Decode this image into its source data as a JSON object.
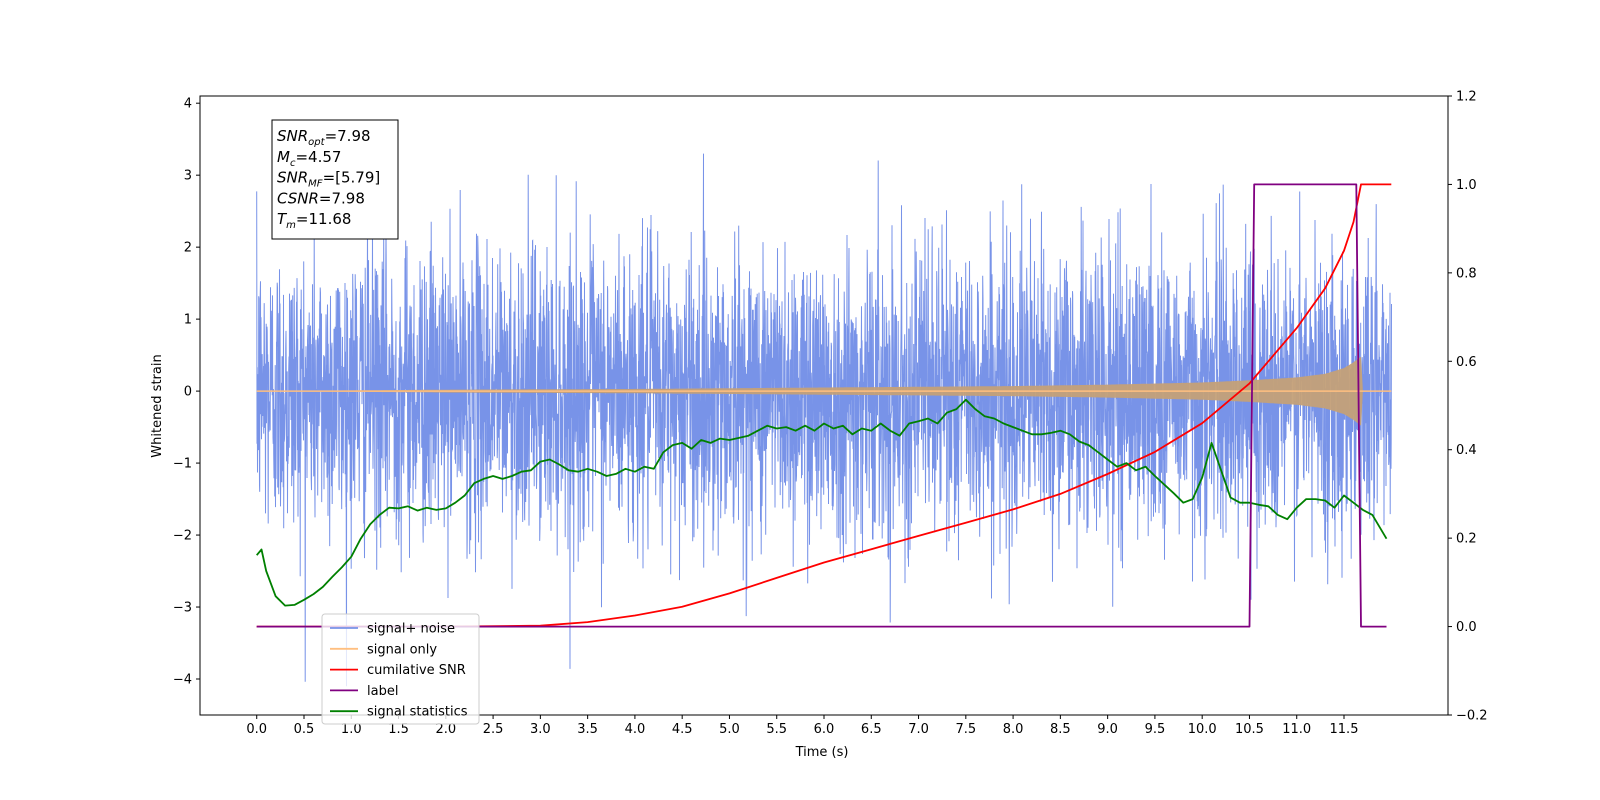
{
  "chart_data": {
    "type": "line",
    "title": "",
    "xlabel": "Time (s)",
    "ylabel": "Whitened strain",
    "xlim": [
      -0.6,
      12.6
    ],
    "ylim": [
      -4.5,
      4.1
    ],
    "y2lim": [
      -0.2,
      1.2
    ],
    "xticks": [
      "0.0",
      "0.5",
      "1.0",
      "1.5",
      "2.0",
      "2.5",
      "3.0",
      "3.5",
      "4.0",
      "4.5",
      "5.0",
      "5.5",
      "6.0",
      "6.5",
      "7.0",
      "7.5",
      "8.0",
      "8.5",
      "9.0",
      "9.5",
      "10.0",
      "10.5",
      "11.0",
      "11.5"
    ],
    "xtick_values": [
      0,
      0.5,
      1,
      1.5,
      2,
      2.5,
      3,
      3.5,
      4,
      4.5,
      5,
      5.5,
      6,
      6.5,
      7,
      7.5,
      8,
      8.5,
      9,
      9.5,
      10,
      10.5,
      11,
      11.5
    ],
    "yticks": [
      "4",
      "3",
      "2",
      "1",
      "0",
      "−1",
      "−2",
      "−3",
      "−4"
    ],
    "ytick_values": [
      4,
      3,
      2,
      1,
      0,
      -1,
      -2,
      -3,
      -4
    ],
    "y2ticks": [
      "1.2",
      "1.0",
      "0.8",
      "0.6",
      "0.4",
      "0.2",
      "0.0",
      "−0.2"
    ],
    "y2tick_values": [
      1.2,
      1.0,
      0.8,
      0.6,
      0.4,
      0.2,
      0.0,
      -0.2
    ],
    "annotations": [
      {
        "symbol": "SNR",
        "sub": "opt",
        "value": "=7.98"
      },
      {
        "symbol": "M",
        "sub": "c",
        "value": "=4.57"
      },
      {
        "symbol": "SNR",
        "sub": "MF",
        "value": "=[5.79]"
      },
      {
        "symbol": "CSNR",
        "sub": "",
        "value": "=7.98"
      },
      {
        "symbol": "T",
        "sub": "m",
        "value": "=11.68"
      }
    ],
    "legend": {
      "placement": "lower-left",
      "entries": [
        {
          "label": "signal+ noise",
          "color": "#7893e8"
        },
        {
          "label": "signal only",
          "color": "#ffbf80"
        },
        {
          "label": "cumilative SNR",
          "color": "#ff0000"
        },
        {
          "label": "label",
          "color": "#800080"
        },
        {
          "label": "signal statistics",
          "color": "#008000"
        }
      ]
    },
    "series": [
      {
        "name": "signal+ noise",
        "axis": "left",
        "color": "#7893e8",
        "kind": "noise",
        "x_range": [
          0.0,
          12.0
        ],
        "sigma": 1.0,
        "y_max": 3.3,
        "y_min": -4.1
      },
      {
        "name": "signal only",
        "axis": "left",
        "color": "#c4a078",
        "kind": "chirp",
        "x_range": [
          0.0,
          12.0
        ],
        "envelope_x": [
          0.0,
          2.0,
          4.0,
          6.0,
          8.0,
          9.0,
          10.0,
          10.5,
          11.0,
          11.3,
          11.5,
          11.6,
          11.68,
          11.7,
          12.0
        ],
        "envelope_y": [
          0.0,
          0.02,
          0.03,
          0.05,
          0.07,
          0.09,
          0.12,
          0.15,
          0.19,
          0.24,
          0.32,
          0.4,
          0.48,
          0.0,
          0.0
        ]
      },
      {
        "name": "cumilative SNR",
        "axis": "right",
        "color": "#ff0000",
        "x": [
          0.0,
          2.0,
          3.0,
          3.5,
          4.0,
          4.5,
          5.0,
          5.5,
          6.0,
          6.5,
          7.0,
          7.5,
          8.0,
          8.5,
          9.0,
          9.5,
          10.0,
          10.5,
          11.0,
          11.3,
          11.5,
          11.6,
          11.68,
          12.0
        ],
        "y": [
          0.0,
          0.0,
          0.002,
          0.01,
          0.025,
          0.045,
          0.075,
          0.11,
          0.145,
          0.175,
          0.205,
          0.235,
          0.265,
          0.3,
          0.345,
          0.395,
          0.46,
          0.55,
          0.675,
          0.765,
          0.85,
          0.915,
          1.0,
          1.0
        ]
      },
      {
        "name": "label",
        "axis": "right",
        "color": "#800080",
        "x": [
          0.0,
          10.5,
          10.55,
          11.63,
          11.68,
          11.95
        ],
        "y": [
          0.0,
          0.0,
          1.0,
          1.0,
          0.0,
          0.0
        ]
      },
      {
        "name": "signal statistics",
        "axis": "left",
        "color": "#008000",
        "x": [
          0.0,
          0.05,
          0.1,
          0.2,
          0.3,
          0.4,
          0.5,
          0.6,
          0.7,
          0.8,
          0.9,
          1.0,
          1.1,
          1.2,
          1.3,
          1.4,
          1.5,
          1.6,
          1.7,
          1.8,
          1.9,
          2.0,
          2.1,
          2.2,
          2.3,
          2.4,
          2.5,
          2.6,
          2.7,
          2.8,
          2.9,
          3.0,
          3.1,
          3.2,
          3.3,
          3.4,
          3.5,
          3.6,
          3.7,
          3.8,
          3.9,
          4.0,
          4.1,
          4.2,
          4.3,
          4.4,
          4.5,
          4.6,
          4.7,
          4.8,
          4.9,
          5.0,
          5.1,
          5.2,
          5.3,
          5.4,
          5.5,
          5.6,
          5.7,
          5.8,
          5.9,
          6.0,
          6.1,
          6.2,
          6.3,
          6.4,
          6.5,
          6.6,
          6.7,
          6.8,
          6.9,
          7.0,
          7.1,
          7.2,
          7.3,
          7.4,
          7.5,
          7.6,
          7.7,
          7.8,
          7.9,
          8.0,
          8.1,
          8.2,
          8.3,
          8.4,
          8.5,
          8.6,
          8.7,
          8.8,
          8.9,
          9.0,
          9.1,
          9.2,
          9.3,
          9.4,
          9.5,
          9.6,
          9.7,
          9.8,
          9.9,
          10.0,
          10.1,
          10.2,
          10.3,
          10.4,
          10.5,
          10.6,
          10.7,
          10.8,
          10.9,
          11.0,
          11.1,
          11.2,
          11.3,
          11.4,
          11.5,
          11.6,
          11.7,
          11.8,
          11.95
        ],
        "y": [
          -2.28,
          -2.2,
          -2.5,
          -2.85,
          -2.98,
          -2.97,
          -2.9,
          -2.82,
          -2.72,
          -2.58,
          -2.45,
          -2.3,
          -2.05,
          -1.85,
          -1.72,
          -1.62,
          -1.63,
          -1.6,
          -1.66,
          -1.62,
          -1.65,
          -1.63,
          -1.55,
          -1.45,
          -1.28,
          -1.22,
          -1.18,
          -1.22,
          -1.18,
          -1.12,
          -1.1,
          -0.98,
          -0.95,
          -1.02,
          -1.1,
          -1.12,
          -1.08,
          -1.12,
          -1.18,
          -1.15,
          -1.08,
          -1.12,
          -1.05,
          -1.08,
          -0.85,
          -0.75,
          -0.72,
          -0.8,
          -0.68,
          -0.72,
          -0.66,
          -0.68,
          -0.65,
          -0.62,
          -0.55,
          -0.48,
          -0.52,
          -0.5,
          -0.55,
          -0.48,
          -0.55,
          -0.45,
          -0.52,
          -0.48,
          -0.6,
          -0.52,
          -0.55,
          -0.45,
          -0.55,
          -0.62,
          -0.45,
          -0.42,
          -0.38,
          -0.45,
          -0.3,
          -0.25,
          -0.12,
          -0.25,
          -0.35,
          -0.38,
          -0.45,
          -0.5,
          -0.55,
          -0.6,
          -0.6,
          -0.58,
          -0.55,
          -0.6,
          -0.7,
          -0.75,
          -0.85,
          -0.95,
          -1.05,
          -1.0,
          -1.1,
          -1.05,
          -1.18,
          -1.3,
          -1.42,
          -1.55,
          -1.5,
          -1.2,
          -0.72,
          -1.1,
          -1.48,
          -1.55,
          -1.55,
          -1.58,
          -1.6,
          -1.72,
          -1.78,
          -1.62,
          -1.5,
          -1.5,
          -1.52,
          -1.62,
          -1.45,
          -1.55,
          -1.65,
          -1.72,
          -2.05
        ]
      }
    ]
  }
}
